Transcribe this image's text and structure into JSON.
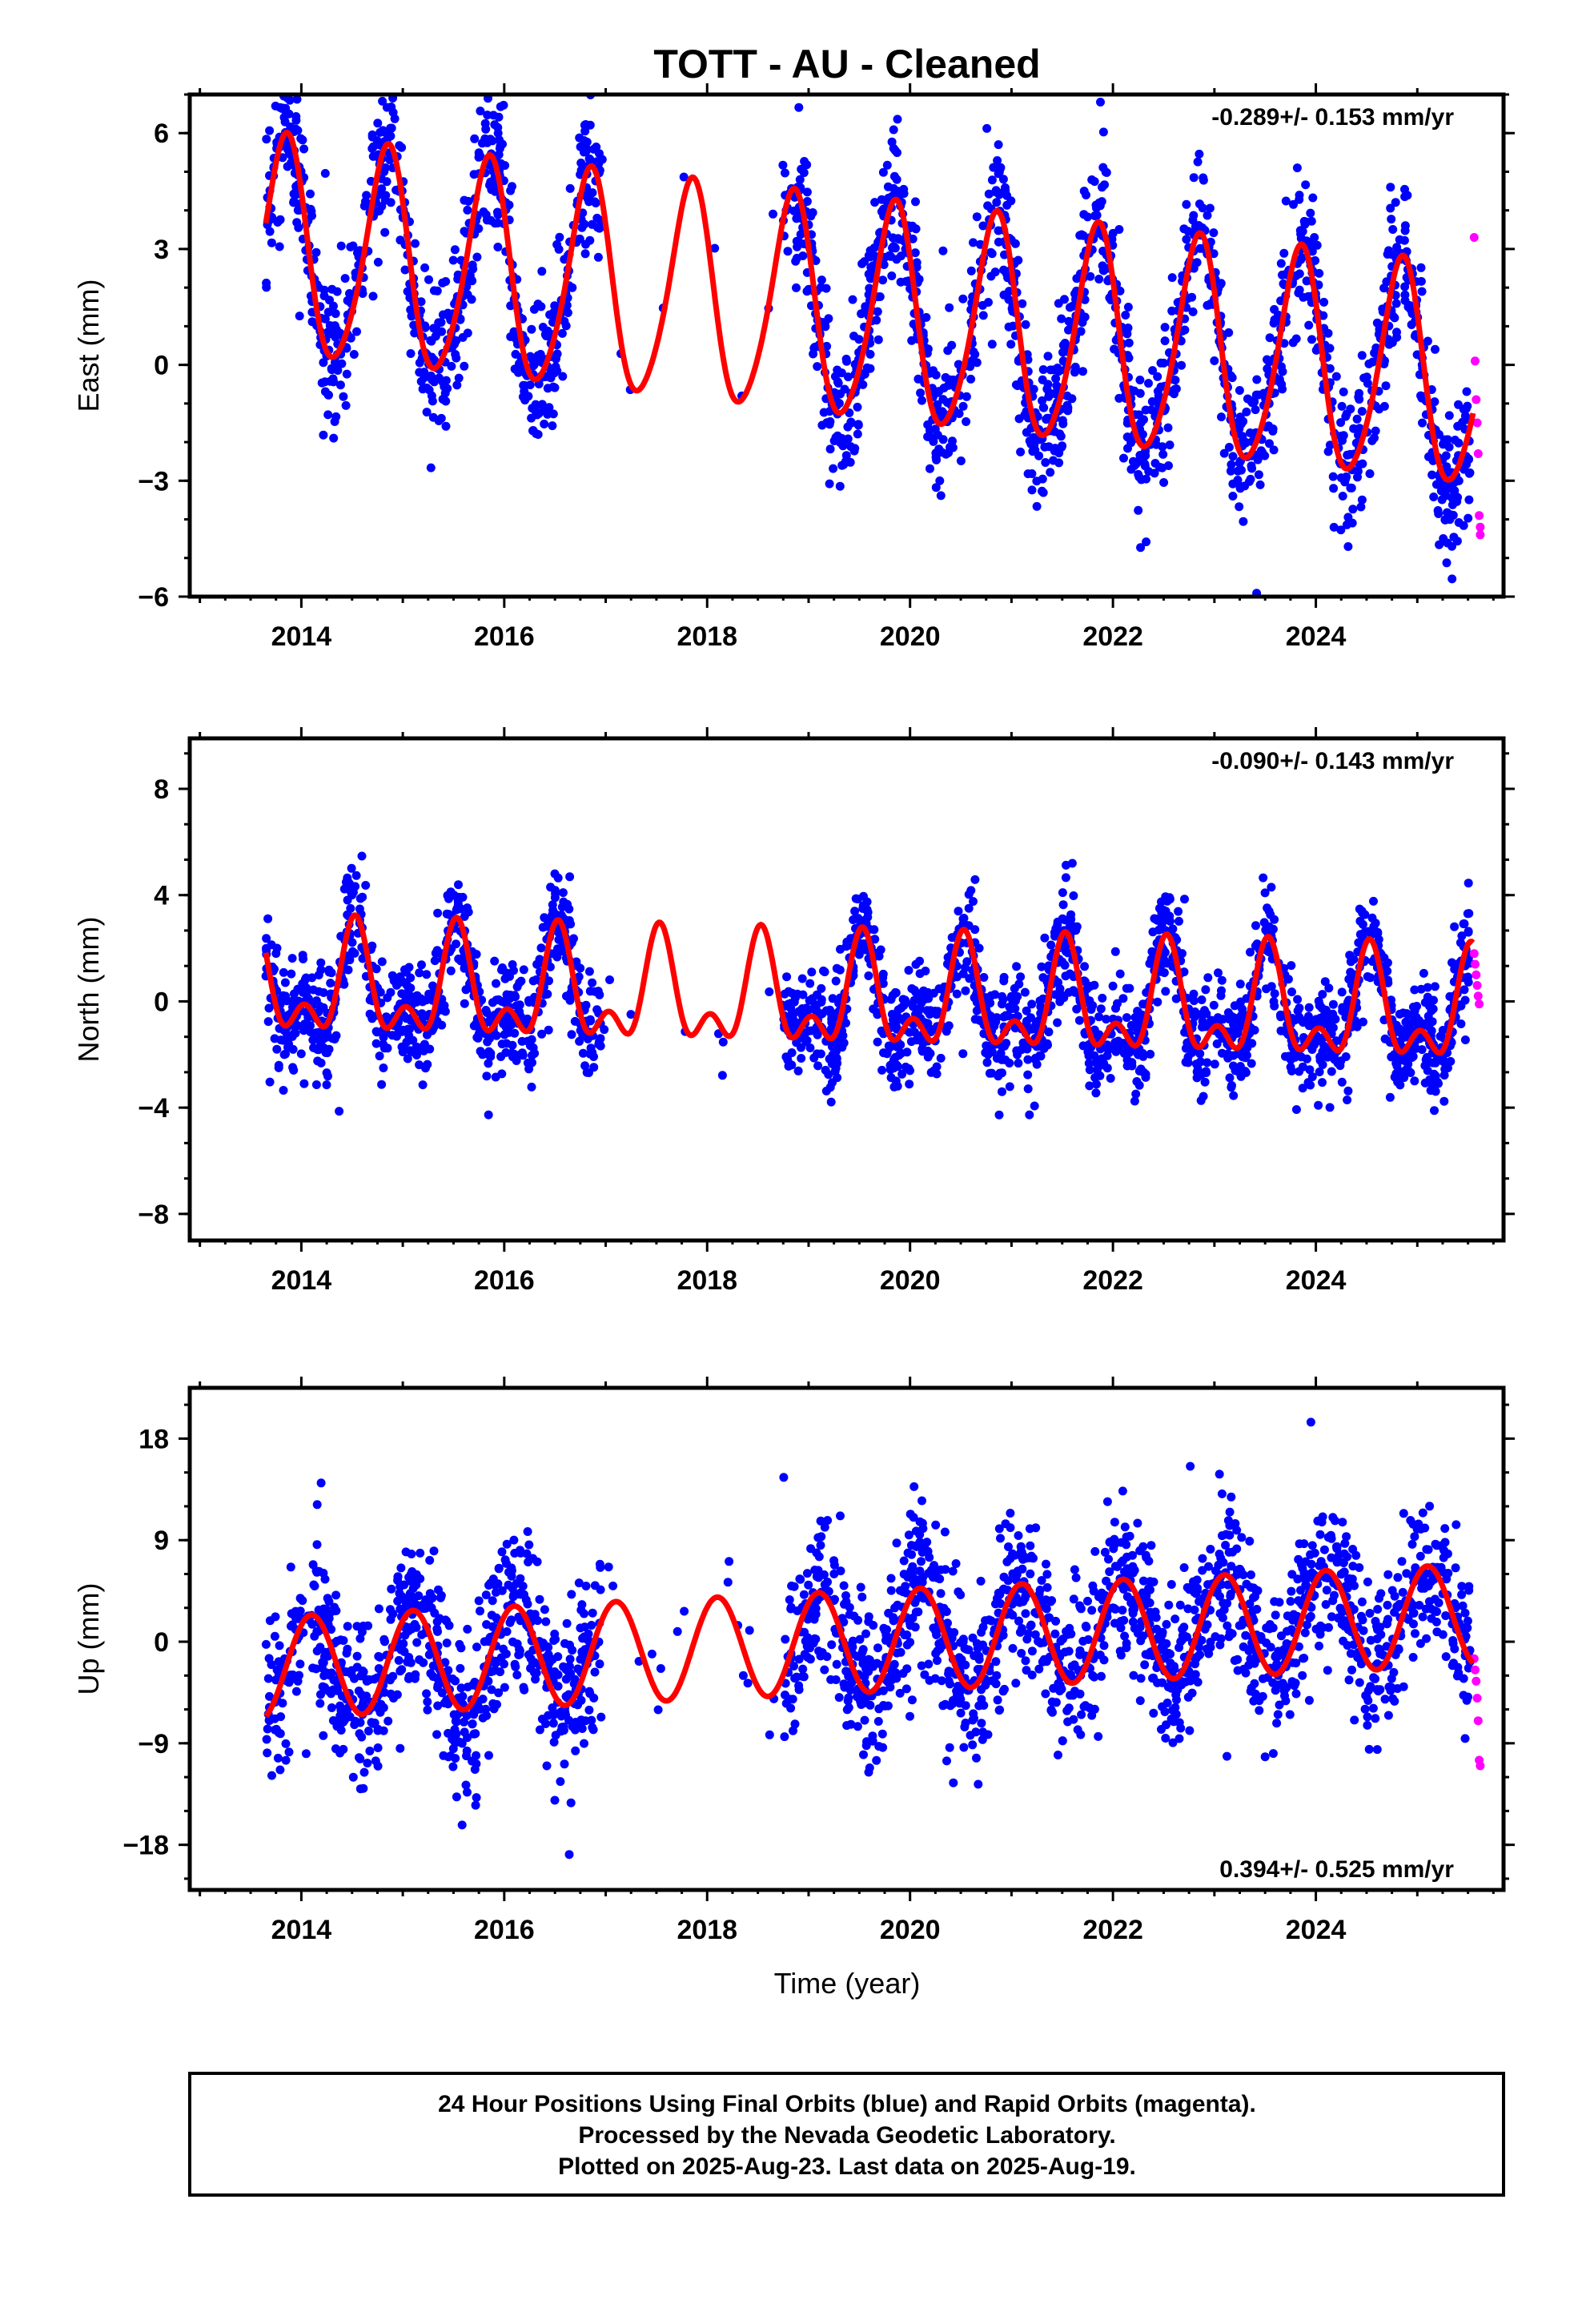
{
  "title": "TOTT  - AU - Cleaned",
  "footer": {
    "lines": [
      "24 Hour Positions Using Final Orbits (blue) and Rapid Orbits (magenta).",
      "Processed by the Nevada Geodetic Laboratory.",
      "Plotted on 2025-Aug-23. Last data on 2025-Aug-19."
    ]
  },
  "colors": {
    "final_orbits": "#0000ff",
    "rapid_orbits": "#ff00ff",
    "model_fit": "#ff0000",
    "frame": "#000000"
  },
  "chart_data": [
    {
      "type": "scatter",
      "title": "TOTT  - AU - Cleaned",
      "ylabel": "East (mm)",
      "xlabel": "",
      "x_ticks": [
        "2014",
        "2016",
        "2018",
        "2020",
        "2022",
        "2024"
      ],
      "y_ticks": [
        "6",
        "3",
        "0",
        "-3",
        "-6"
      ],
      "xlim": [
        2012.9,
        2025.85
      ],
      "ylim": [
        -6.0,
        7.0
      ],
      "grid": false,
      "rate_text": "-0.289+/- 0.153 mm/yr",
      "rate_position": "top-right",
      "model": {
        "offset": 1.3,
        "rate": -0.289,
        "annual_amp": 2.8,
        "peak_phase": 0.84,
        "semi_amp": 0.35,
        "semi_peak": 0.9
      },
      "gaps": [
        [
          2016.95,
          2018.75
        ]
      ],
      "series": [
        {
          "name": "Final Orbits",
          "color": "#0000ff",
          "x_range": [
            2013.65,
            2025.52
          ],
          "noise_mm": 0.95
        },
        {
          "name": "Rapid Orbits",
          "color": "#ff00ff",
          "x": [
            2025.56,
            2025.57,
            2025.58,
            2025.59,
            2025.6,
            2025.61,
            2025.62,
            2025.62
          ],
          "y": [
            3.3,
            0.1,
            -0.9,
            -1.5,
            -2.3,
            -3.9,
            -4.2,
            -4.4
          ]
        }
      ]
    },
    {
      "type": "scatter",
      "ylabel": "North (mm)",
      "xlabel": "",
      "x_ticks": [
        "2014",
        "2016",
        "2018",
        "2020",
        "2022",
        "2024"
      ],
      "y_ticks": [
        "8",
        "4",
        "0",
        "-4",
        "-8"
      ],
      "xlim": [
        2012.9,
        2025.85
      ],
      "ylim": [
        -9.0,
        9.9
      ],
      "grid": false,
      "rate_text": "-0.090+/- 0.143 mm/yr",
      "rate_position": "top-right",
      "model": {
        "offset": 0.0,
        "rate": -0.09,
        "annual_amp": 1.7,
        "peak_phase": 0.53,
        "semi_amp": 1.1,
        "semi_peak": 0.53
      },
      "gaps": [
        [
          2016.95,
          2018.75
        ]
      ],
      "series": [
        {
          "name": "Final Orbits",
          "color": "#0000ff",
          "x_range": [
            2013.65,
            2025.52
          ],
          "noise_mm": 1.0
        },
        {
          "name": "Rapid Orbits",
          "color": "#ff00ff",
          "x": [
            2025.56,
            2025.57,
            2025.58,
            2025.59,
            2025.6,
            2025.61
          ],
          "y": [
            1.8,
            1.4,
            1.0,
            0.6,
            0.2,
            -0.1
          ]
        }
      ]
    },
    {
      "type": "scatter",
      "ylabel": "Up (mm)",
      "xlabel": "Time (year)",
      "x_ticks": [
        "2014",
        "2016",
        "2018",
        "2020",
        "2022",
        "2024"
      ],
      "y_ticks": [
        "18",
        "9",
        "0",
        "-9",
        "-18"
      ],
      "xlim": [
        2012.9,
        2025.85
      ],
      "ylim": [
        -22.0,
        22.5
      ],
      "grid": false,
      "rate_text": "0.394+/- 0.525 mm/yr",
      "rate_position": "bottom-right",
      "model": {
        "offset": 0.0,
        "rate": 0.394,
        "annual_amp": 4.5,
        "peak_phase": 0.1,
        "semi_amp": 0.0,
        "semi_peak": 0.0
      },
      "gaps": [
        [
          2016.95,
          2018.75
        ]
      ],
      "series": [
        {
          "name": "Final Orbits",
          "color": "#0000ff",
          "x_range": [
            2013.65,
            2025.52
          ],
          "noise_mm": 3.6
        },
        {
          "name": "Rapid Orbits",
          "color": "#ff00ff",
          "x": [
            2025.56,
            2025.57,
            2025.58,
            2025.59,
            2025.6,
            2025.61,
            2025.62
          ],
          "y": [
            -1.5,
            -2.5,
            -3.5,
            -5.0,
            -7.0,
            -10.5,
            -11.0
          ]
        }
      ]
    }
  ]
}
